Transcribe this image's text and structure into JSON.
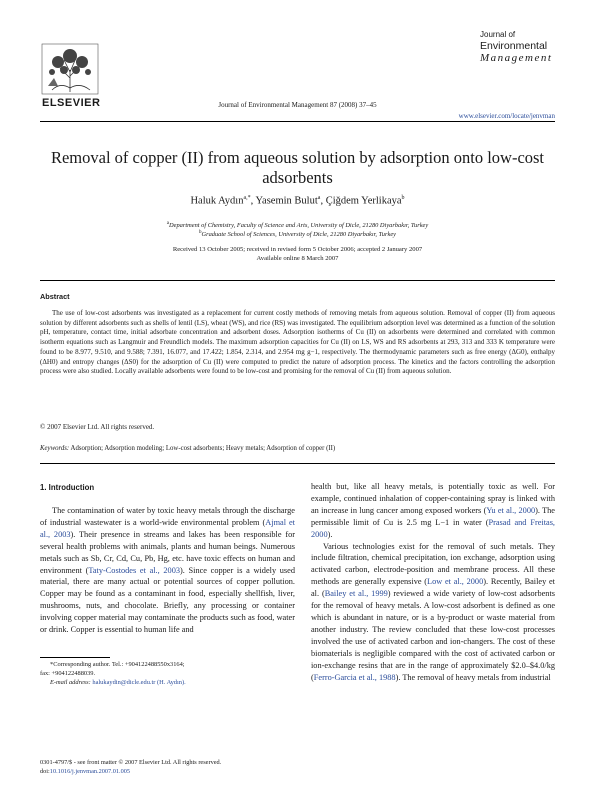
{
  "header": {
    "publisher": "ELSEVIER",
    "journal_citation": "Journal of Environmental Management 87 (2008) 37–45",
    "journal_logo": {
      "line1": "Journal of",
      "line2": "Environmental",
      "line3": "Management"
    },
    "url": "www.elsevier.com/locate/jenvman"
  },
  "article": {
    "title": "Removal of copper (II) from aqueous solution by adsorption onto low-cost adsorbents",
    "authors": {
      "a1_name": "Haluk Aydın",
      "a1_sup": "a,*",
      "a2_name": "Yasemin Bulut",
      "a2_sup": "a",
      "a3_name": "Çiğdem Yerlikaya",
      "a3_sup": "b"
    },
    "affiliations": [
      {
        "sup": "a",
        "text": "Department of Chemistry, Faculty of Science and Arts, University of Dicle, 21280 Diyarbakır, Turkey"
      },
      {
        "sup": "b",
        "text": "Graduate School of Sciences, University of Dicle, 21280 Diyarbakır, Turkey"
      }
    ],
    "received": "Received 13 October 2005; received in revised form 5 October 2006; accepted 2 January 2007",
    "online": "Available online 8 March 2007"
  },
  "abstract": {
    "heading": "Abstract",
    "text": "The use of low-cost adsorbents was investigated as a replacement for current costly methods of removing metals from aqueous solution. Removal of copper (II) from aqueous solution by different adsorbents such as shells of lentil (LS), wheat (WS), and rice (RS) was investigated. The equilibrium adsorption level was determined as a function of the solution pH, temperature, contact time, initial adsorbate concentration and adsorbent doses. Adsorption isotherms of Cu (II) on adsorbents were determined and correlated with common isotherm equations such as Langmuir and Freundlich models. The maximum adsorption capacities for Cu (II) on LS, WS and RS adsorbents at 293, 313 and 333 K temperature were found to be 8.977, 9.510, and 9.588; 7.391, 16.077, and 17.422; 1.854, 2.314, and 2.954 mg g−1, respectively. The thermodynamic parameters such as free energy (ΔG0), enthalpy (ΔH0) and entropy changes (ΔS0) for the adsorption of Cu (II) were computed to predict the nature of adsorption process. The kinetics and the factors controlling the adsorption process were also studied. Locally available adsorbents were found to be low-cost and promising for the removal of Cu (II) from aqueous solution.",
    "copyright": "© 2007 Elsevier Ltd. All rights reserved.",
    "keywords_label": "Keywords:",
    "keywords": "Adsorption; Adsorption modeling; Low-cost adsorbents; Heavy metals; Adsorption of copper (II)"
  },
  "intro": {
    "heading": "1. Introduction",
    "p1_a": "The contamination of water by toxic heavy metals through the discharge of industrial wastewater is a world-wide environmental problem (",
    "p1_ref1": "Ajmal et al., 2003",
    "p1_b": "). Their presence in streams and lakes has been responsible for several health problems with animals, plants and human beings. Numerous metals such as Sb, Cr, Cd, Cu, Pb, Hg, etc. have toxic effects on human and environment (",
    "p1_ref2": "Taty-Costodes et al., 2003",
    "p1_c": "). Since copper is a widely used material, there are many actual or potential sources of copper pollution. Copper may be found as a contaminant in food, especially shellfish, liver, mushrooms, nuts, and chocolate. Briefly, any processing or container involving copper material may contaminate the products such as food, water or drink. Copper is essential to human life and"
  },
  "right": {
    "p1_a": "health but, like all heavy metals, is potentially toxic as well. For example, continued inhalation of copper-containing spray is linked with an increase in lung cancer among exposed workers (",
    "p1_ref1": "Yu et al., 2000",
    "p1_b": "). The permissible limit of Cu is 2.5 mg L−1 in water (",
    "p1_ref2": "Prasad and Freitas, 2000",
    "p1_c": ").",
    "p2_a": "Various technologies exist for the removal of such metals. They include filtration, chemical precipitation, ion exchange, adsorption using activated carbon, electrode-position and membrane process. All these methods are generally expensive (",
    "p2_ref1": "Low et al., 2000",
    "p2_b": "). Recently, Bailey et al. (",
    "p2_ref2": "Bailey et al., 1999",
    "p2_c": ") reviewed a wide variety of low-cost adsorbents for the removal of heavy metals. A low-cost adsorbent is defined as one which is abundant in nature, or is a by-product or waste material from another industry. The review concluded that these low-cost processes involved the use of activated carbon and ion-changers. The cost of these biomaterials is negligible compared with the cost of activated carbon or ion-exchange resins that are in the range of approximately $2.0–$4.0/kg (",
    "p2_ref3": "Ferro-Garcia et al., 1988",
    "p2_d": "). The removal of heavy metals from industrial"
  },
  "footnote": {
    "line1": "*Corresponding author. Tel.: +904122488550x3164;",
    "line2": "fax: +904122488039.",
    "email_label": "E-mail address:",
    "email": "halukaydin@dicle.edu.tr (H. Aydın)."
  },
  "footer": {
    "issn": "0301-4797/$ - see front matter © 2007 Elsevier Ltd. All rights reserved.",
    "doi_label": "doi:",
    "doi": "10.1016/j.jenvman.2007.01.005"
  },
  "colors": {
    "link": "#2a4c9a",
    "text": "#1a1a1a"
  }
}
